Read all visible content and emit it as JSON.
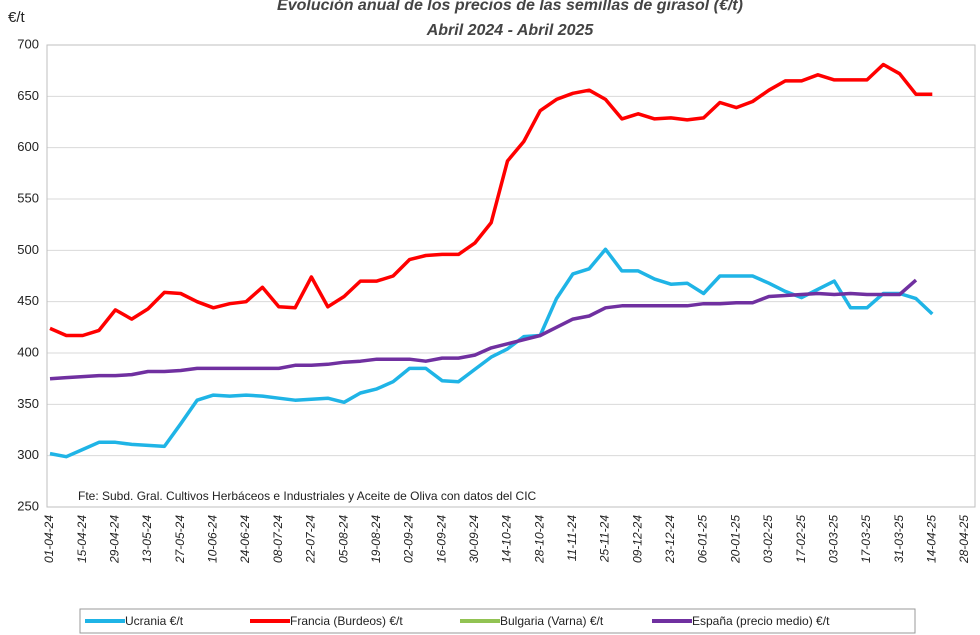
{
  "chart_data": {
    "type": "line",
    "title": "Evolución anual de los precios de las semillas de girasol (€/t)",
    "subtitle": "Abril 2024 - Abril 2025",
    "y_label": "€/t",
    "annotation": "Fte: Subd. Gral. Cultivos Herbáceos e Industriales y Aceite de Oliva con datos del CIC",
    "categories": [
      "01-04-24",
      null,
      "15-04-24",
      null,
      "29-04-24",
      null,
      "13-05-24",
      null,
      "27-05-24",
      null,
      "10-06-24",
      null,
      "24-06-24",
      null,
      "08-07-24",
      null,
      "22-07-24",
      null,
      "05-08-24",
      null,
      "19-08-24",
      null,
      "02-09-24",
      null,
      "16-09-24",
      null,
      "30-09-24",
      null,
      "14-10-24",
      null,
      "28-10-24",
      null,
      "11-11-24",
      null,
      "25-11-24",
      null,
      "09-12-24",
      null,
      "23-12-24",
      null,
      "06-01-25",
      null,
      "20-01-25",
      null,
      "03-02-25",
      null,
      "17-02-25",
      null,
      "03-03-25",
      null,
      "17-03-25",
      null,
      "31-03-25",
      null,
      "14-04-25",
      null,
      "28-04-25"
    ],
    "series": [
      {
        "name": "Ucrania €/t",
        "color": "#1fb4e6",
        "values": [
          302,
          299,
          306,
          313,
          313,
          311,
          310,
          309,
          331,
          354,
          359,
          358,
          359,
          358,
          356,
          354,
          355,
          356,
          352,
          361,
          365,
          372,
          385,
          385,
          373,
          372,
          384,
          396,
          404,
          416,
          417,
          453,
          477,
          482,
          501,
          480,
          480,
          472,
          467,
          468,
          458,
          475,
          475,
          475,
          468,
          460,
          454,
          462,
          470,
          444,
          444,
          458,
          458,
          453,
          438,
          null,
          null
        ]
      },
      {
        "name": "Francia (Burdeos) €/t",
        "color": "#ff0000",
        "values": [
          424,
          417,
          417,
          422,
          442,
          433,
          443,
          459,
          458,
          450,
          444,
          448,
          450,
          464,
          445,
          444,
          474,
          445,
          455,
          470,
          470,
          475,
          491,
          495,
          496,
          496,
          507,
          527,
          587,
          606,
          636,
          647,
          653,
          656,
          647,
          628,
          633,
          628,
          629,
          627,
          629,
          644,
          639,
          645,
          656,
          665,
          665,
          671,
          666,
          666,
          666,
          681,
          672,
          652,
          652,
          null,
          null
        ]
      },
      {
        "name": "Bulgaria (Varna) €/t",
        "color": "#92c353",
        "values": [
          null,
          null,
          null,
          null,
          null,
          null,
          null,
          null,
          null,
          null,
          null,
          null,
          null,
          null,
          null,
          null,
          null,
          null,
          null,
          null,
          null,
          null,
          null,
          null,
          null,
          null,
          null,
          null,
          null,
          null,
          null,
          null,
          null,
          null,
          null,
          null,
          null,
          null,
          null,
          null,
          null,
          null,
          null,
          null,
          null,
          null,
          null,
          null,
          null,
          null,
          null,
          null,
          null,
          null,
          null,
          null,
          null
        ]
      },
      {
        "name": "España (precio medio) €/t",
        "color": "#7030a0",
        "values": [
          375,
          376,
          377,
          378,
          378,
          379,
          382,
          382,
          383,
          385,
          385,
          385,
          385,
          385,
          385,
          388,
          388,
          389,
          391,
          392,
          394,
          394,
          394,
          392,
          395,
          395,
          398,
          405,
          409,
          413,
          417,
          425,
          433,
          436,
          444,
          446,
          446,
          446,
          446,
          446,
          448,
          448,
          449,
          449,
          455,
          456,
          457,
          458,
          457,
          458,
          457,
          457,
          457,
          471,
          null,
          null,
          null
        ]
      }
    ],
    "ylim": [
      250,
      700
    ],
    "yticks": [
      250,
      300,
      350,
      400,
      450,
      500,
      550,
      600,
      650,
      700
    ],
    "grid": true
  }
}
